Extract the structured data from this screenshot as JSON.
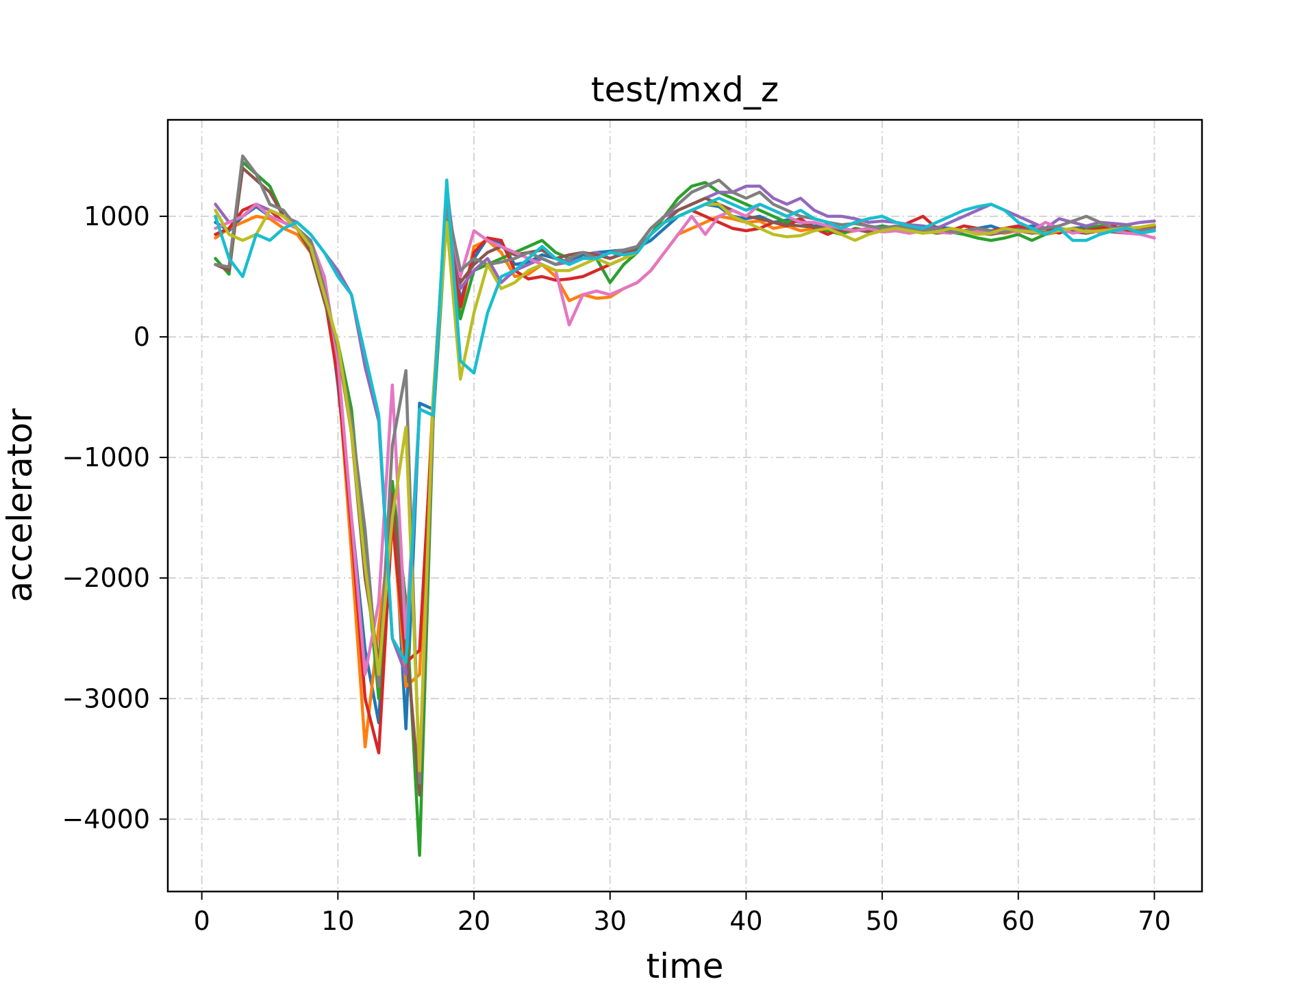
{
  "chart_data": {
    "type": "line",
    "title": "test/mxd_z",
    "xlabel": "time",
    "ylabel": "accelerator",
    "xlim": [
      -2.5,
      73.5
    ],
    "ylim": [
      -4600,
      1800
    ],
    "xticks": [
      0,
      10,
      20,
      30,
      40,
      50,
      60,
      70
    ],
    "xtick_labels": [
      "0",
      "10",
      "20",
      "30",
      "40",
      "50",
      "60",
      "70"
    ],
    "yticks": [
      1000,
      0,
      -1000,
      -2000,
      -3000,
      -4000
    ],
    "ytick_labels": [
      "1000",
      "0",
      "−1000",
      "−2000",
      "−3000",
      "−4000"
    ],
    "grid": true,
    "legend": "none",
    "x": [
      1,
      2,
      3,
      4,
      5,
      6,
      7,
      8,
      9,
      10,
      11,
      12,
      13,
      14,
      15,
      16,
      17,
      18,
      19,
      20,
      21,
      22,
      23,
      24,
      25,
      26,
      27,
      28,
      29,
      30,
      31,
      32,
      33,
      34,
      35,
      36,
      37,
      38,
      39,
      40,
      41,
      42,
      43,
      44,
      45,
      46,
      47,
      48,
      49,
      50,
      51,
      52,
      53,
      54,
      55,
      56,
      57,
      58,
      59,
      60,
      61,
      62,
      63,
      64,
      65,
      66,
      67,
      68,
      69,
      70
    ],
    "series": [
      {
        "color": "#1f77b4",
        "values": [
          950,
          880,
          1000,
          1080,
          1000,
          950,
          900,
          780,
          500,
          -400,
          -1500,
          -2600,
          -3200,
          -1200,
          -3250,
          -550,
          -600,
          1200,
          300,
          650,
          820,
          780,
          600,
          620,
          680,
          650,
          620,
          680,
          700,
          710,
          720,
          740,
          800,
          900,
          1000,
          1050,
          1100,
          1080,
          1000,
          980,
          1000,
          950,
          970,
          950,
          920,
          930,
          900,
          880,
          900,
          920,
          900,
          890,
          880,
          910,
          900,
          880,
          900,
          920,
          880,
          900,
          920,
          900,
          880,
          900,
          910,
          890,
          900,
          880,
          900,
          910
        ]
      },
      {
        "color": "#ff7f0e",
        "values": [
          820,
          900,
          950,
          1000,
          980,
          900,
          850,
          700,
          400,
          -300,
          -1800,
          -3400,
          -2400,
          -1500,
          -2900,
          -2800,
          -500,
          1100,
          200,
          750,
          800,
          700,
          500,
          520,
          600,
          500,
          300,
          350,
          320,
          330,
          400,
          450,
          550,
          700,
          850,
          900,
          950,
          1000,
          980,
          950,
          960,
          900,
          920,
          880,
          900,
          880,
          860,
          880,
          900,
          870,
          880,
          860,
          880,
          870,
          860,
          880,
          890,
          870,
          860,
          880,
          870,
          850,
          870,
          880,
          860,
          880,
          870,
          860,
          880,
          900
        ]
      },
      {
        "color": "#2ca02c",
        "values": [
          650,
          520,
          1450,
          1350,
          1250,
          1000,
          900,
          750,
          300,
          -50,
          -600,
          -1800,
          -3000,
          -1200,
          -2200,
          -4300,
          -700,
          1000,
          150,
          550,
          600,
          650,
          700,
          750,
          800,
          700,
          650,
          700,
          650,
          450,
          600,
          700,
          850,
          1000,
          1150,
          1250,
          1280,
          1200,
          1150,
          1100,
          1050,
          1000,
          950,
          980,
          900,
          880,
          850,
          900,
          880,
          920,
          900,
          880,
          860,
          900,
          870,
          850,
          820,
          800,
          820,
          850,
          800,
          850,
          900,
          880,
          900,
          920,
          900,
          880,
          900,
          920
        ]
      },
      {
        "color": "#d62728",
        "values": [
          850,
          900,
          1050,
          1100,
          1050,
          950,
          900,
          750,
          350,
          -350,
          -1600,
          -3000,
          -3450,
          -1500,
          -2700,
          -2600,
          -600,
          1250,
          250,
          700,
          820,
          800,
          550,
          480,
          500,
          470,
          480,
          500,
          550,
          600,
          650,
          700,
          850,
          950,
          1000,
          1050,
          1000,
          950,
          900,
          880,
          900,
          950,
          920,
          980,
          900,
          850,
          900,
          950,
          920,
          880,
          900,
          950,
          1000,
          900,
          880,
          920,
          900,
          880,
          900,
          920,
          880,
          900,
          860,
          900,
          880,
          900,
          920,
          880,
          900,
          910
        ]
      },
      {
        "color": "#9467bd",
        "values": [
          1100,
          950,
          1000,
          1100,
          1050,
          1000,
          950,
          850,
          700,
          550,
          350,
          -250,
          -700,
          -2500,
          -2800,
          -600,
          -650,
          1200,
          400,
          550,
          650,
          450,
          550,
          600,
          650,
          600,
          620,
          650,
          700,
          650,
          700,
          750,
          900,
          1000,
          1050,
          1100,
          1150,
          1200,
          1200,
          1250,
          1250,
          1150,
          1100,
          1150,
          1050,
          1000,
          1000,
          980,
          950,
          960,
          950,
          930,
          920,
          900,
          950,
          1000,
          1050,
          1100,
          1050,
          1000,
          950,
          900,
          980,
          950,
          920,
          950,
          940,
          930,
          950,
          960
        ]
      },
      {
        "color": "#8c564b",
        "values": [
          600,
          550,
          1400,
          1300,
          1200,
          1000,
          900,
          700,
          300,
          -100,
          -800,
          -2000,
          -2700,
          -1300,
          -2500,
          -3800,
          -650,
          1150,
          450,
          600,
          700,
          750,
          680,
          700,
          720,
          650,
          680,
          700,
          680,
          650,
          690,
          720,
          850,
          950,
          1050,
          1100,
          1150,
          1100,
          1050,
          1000,
          980,
          950,
          930,
          920,
          910,
          900,
          880,
          890,
          870,
          880,
          890,
          870,
          880,
          860,
          870,
          880,
          860,
          850,
          870,
          880,
          860,
          870,
          880,
          870,
          860,
          880,
          870,
          860,
          870,
          880
        ]
      },
      {
        "color": "#e377c2",
        "values": [
          900,
          950,
          1000,
          1100,
          1000,
          950,
          900,
          800,
          500,
          -200,
          -1500,
          -2800,
          -2200,
          -400,
          -2500,
          -600,
          -650,
          1100,
          500,
          880,
          800,
          750,
          700,
          650,
          600,
          550,
          100,
          350,
          380,
          350,
          400,
          450,
          550,
          700,
          850,
          1000,
          850,
          1000,
          1050,
          1000,
          1100,
          1050,
          1000,
          950,
          950,
          920,
          900,
          880,
          900,
          870,
          880,
          860,
          880,
          870,
          860,
          880,
          870,
          860,
          880,
          870,
          880,
          950,
          900,
          860,
          880,
          870,
          880,
          860,
          850,
          820
        ]
      },
      {
        "color": "#7f7f7f",
        "values": [
          600,
          580,
          1500,
          1350,
          1100,
          1050,
          900,
          800,
          400,
          -100,
          -700,
          -1600,
          -2900,
          -900,
          -280,
          -3700,
          -650,
          1100,
          550,
          650,
          600,
          620,
          650,
          700,
          650,
          600,
          650,
          700,
          650,
          700,
          720,
          750,
          900,
          1000,
          1100,
          1200,
          1250,
          1300,
          1200,
          1150,
          1200,
          1100,
          1050,
          1000,
          980,
          950,
          930,
          940,
          920,
          900,
          920,
          900,
          880,
          900,
          870,
          880,
          900,
          880,
          870,
          890,
          880,
          900,
          920,
          960,
          1000,
          950,
          900,
          920,
          880,
          900
        ]
      },
      {
        "color": "#bcbd22",
        "values": [
          1050,
          850,
          800,
          850,
          1050,
          1000,
          900,
          750,
          350,
          -50,
          -800,
          -1900,
          -2800,
          -1500,
          -750,
          -3600,
          -500,
          950,
          -350,
          200,
          600,
          400,
          450,
          550,
          600,
          550,
          550,
          600,
          650,
          600,
          650,
          700,
          850,
          950,
          1000,
          1050,
          1100,
          1100,
          1000,
          950,
          900,
          850,
          830,
          840,
          880,
          900,
          850,
          800,
          850,
          880,
          900,
          880,
          860,
          870,
          900,
          880,
          850,
          860,
          900,
          880,
          870,
          860,
          880,
          900,
          870,
          880,
          890,
          900,
          910,
          930
        ]
      },
      {
        "color": "#17becf",
        "values": [
          1000,
          650,
          500,
          850,
          800,
          900,
          950,
          850,
          700,
          500,
          350,
          -150,
          -650,
          -2500,
          -2700,
          -600,
          -650,
          1300,
          -200,
          -300,
          200,
          500,
          550,
          650,
          750,
          650,
          600,
          650,
          650,
          700,
          680,
          700,
          850,
          950,
          1000,
          1050,
          1100,
          1150,
          1100,
          1050,
          1100,
          1050,
          1000,
          1050,
          980,
          950,
          900,
          950,
          980,
          1000,
          950,
          920,
          900,
          950,
          1000,
          1050,
          1080,
          1100,
          1050,
          950,
          900,
          850,
          900,
          800,
          800,
          850,
          880,
          900,
          860,
          880
        ]
      }
    ]
  }
}
